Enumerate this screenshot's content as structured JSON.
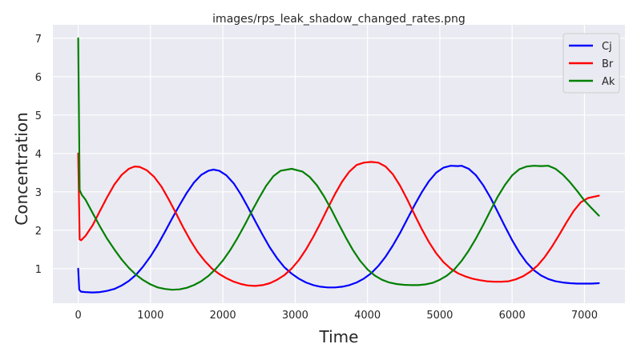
{
  "chart_data": {
    "type": "line",
    "title": "images/rps_leak_shadow_changed_rates.png",
    "xlabel": "Time",
    "ylabel": "Concentration",
    "xlim": [
      -350,
      7560
    ],
    "ylim": [
      0.1,
      7.35
    ],
    "xticks": [
      0,
      1000,
      2000,
      3000,
      4000,
      5000,
      6000,
      7000
    ],
    "yticks": [
      1,
      2,
      3,
      4,
      5,
      6,
      7
    ],
    "grid": true,
    "legend_position": "top-right",
    "background": "#eaeaf2",
    "series": [
      {
        "name": "Cj",
        "color": "#0000ff",
        "points": [
          [
            0,
            1.0
          ],
          [
            15,
            0.45
          ],
          [
            40,
            0.4
          ],
          [
            100,
            0.39
          ],
          [
            200,
            0.38
          ],
          [
            300,
            0.39
          ],
          [
            400,
            0.42
          ],
          [
            500,
            0.47
          ],
          [
            600,
            0.56
          ],
          [
            700,
            0.68
          ],
          [
            800,
            0.84
          ],
          [
            900,
            1.06
          ],
          [
            1000,
            1.32
          ],
          [
            1100,
            1.62
          ],
          [
            1200,
            1.96
          ],
          [
            1300,
            2.31
          ],
          [
            1400,
            2.65
          ],
          [
            1500,
            2.97
          ],
          [
            1600,
            3.24
          ],
          [
            1700,
            3.44
          ],
          [
            1800,
            3.55
          ],
          [
            1870,
            3.58
          ],
          [
            1950,
            3.55
          ],
          [
            2050,
            3.43
          ],
          [
            2150,
            3.22
          ],
          [
            2250,
            2.93
          ],
          [
            2350,
            2.59
          ],
          [
            2450,
            2.23
          ],
          [
            2550,
            1.88
          ],
          [
            2650,
            1.55
          ],
          [
            2750,
            1.27
          ],
          [
            2850,
            1.04
          ],
          [
            2950,
            0.87
          ],
          [
            3050,
            0.74
          ],
          [
            3150,
            0.64
          ],
          [
            3250,
            0.57
          ],
          [
            3350,
            0.53
          ],
          [
            3450,
            0.51
          ],
          [
            3550,
            0.51
          ],
          [
            3650,
            0.53
          ],
          [
            3750,
            0.57
          ],
          [
            3850,
            0.64
          ],
          [
            3950,
            0.74
          ],
          [
            4050,
            0.88
          ],
          [
            4150,
            1.07
          ],
          [
            4250,
            1.31
          ],
          [
            4350,
            1.6
          ],
          [
            4450,
            1.93
          ],
          [
            4550,
            2.29
          ],
          [
            4650,
            2.65
          ],
          [
            4750,
            2.99
          ],
          [
            4850,
            3.28
          ],
          [
            4950,
            3.5
          ],
          [
            5050,
            3.63
          ],
          [
            5150,
            3.68
          ],
          [
            5250,
            3.67
          ],
          [
            5300,
            3.68
          ],
          [
            5400,
            3.6
          ],
          [
            5500,
            3.43
          ],
          [
            5600,
            3.17
          ],
          [
            5700,
            2.85
          ],
          [
            5800,
            2.48
          ],
          [
            5900,
            2.1
          ],
          [
            6000,
            1.74
          ],
          [
            6100,
            1.42
          ],
          [
            6200,
            1.16
          ],
          [
            6300,
            0.96
          ],
          [
            6400,
            0.82
          ],
          [
            6500,
            0.73
          ],
          [
            6600,
            0.67
          ],
          [
            6700,
            0.64
          ],
          [
            6800,
            0.62
          ],
          [
            6900,
            0.61
          ],
          [
            7000,
            0.61
          ],
          [
            7100,
            0.61
          ],
          [
            7200,
            0.62
          ]
        ]
      },
      {
        "name": "Br",
        "color": "#ff0000",
        "points": [
          [
            0,
            4.0
          ],
          [
            20,
            1.76
          ],
          [
            40,
            1.74
          ],
          [
            100,
            1.85
          ],
          [
            200,
            2.13
          ],
          [
            300,
            2.5
          ],
          [
            400,
            2.86
          ],
          [
            500,
            3.19
          ],
          [
            600,
            3.44
          ],
          [
            700,
            3.6
          ],
          [
            780,
            3.66
          ],
          [
            850,
            3.65
          ],
          [
            950,
            3.56
          ],
          [
            1050,
            3.39
          ],
          [
            1150,
            3.14
          ],
          [
            1250,
            2.81
          ],
          [
            1350,
            2.45
          ],
          [
            1450,
            2.08
          ],
          [
            1550,
            1.74
          ],
          [
            1650,
            1.44
          ],
          [
            1750,
            1.2
          ],
          [
            1850,
            1.0
          ],
          [
            1950,
            0.86
          ],
          [
            2050,
            0.75
          ],
          [
            2150,
            0.66
          ],
          [
            2250,
            0.6
          ],
          [
            2350,
            0.56
          ],
          [
            2450,
            0.55
          ],
          [
            2550,
            0.57
          ],
          [
            2650,
            0.62
          ],
          [
            2750,
            0.71
          ],
          [
            2850,
            0.83
          ],
          [
            2950,
            1.0
          ],
          [
            3050,
            1.22
          ],
          [
            3150,
            1.5
          ],
          [
            3250,
            1.83
          ],
          [
            3350,
            2.19
          ],
          [
            3450,
            2.57
          ],
          [
            3550,
            2.94
          ],
          [
            3650,
            3.27
          ],
          [
            3750,
            3.53
          ],
          [
            3850,
            3.7
          ],
          [
            3950,
            3.76
          ],
          [
            4050,
            3.78
          ],
          [
            4150,
            3.76
          ],
          [
            4250,
            3.66
          ],
          [
            4350,
            3.46
          ],
          [
            4450,
            3.16
          ],
          [
            4550,
            2.8
          ],
          [
            4650,
            2.41
          ],
          [
            4750,
            2.03
          ],
          [
            4850,
            1.69
          ],
          [
            4950,
            1.4
          ],
          [
            5050,
            1.17
          ],
          [
            5150,
            1.0
          ],
          [
            5250,
            0.88
          ],
          [
            5350,
            0.8
          ],
          [
            5450,
            0.74
          ],
          [
            5550,
            0.7
          ],
          [
            5650,
            0.67
          ],
          [
            5750,
            0.66
          ],
          [
            5850,
            0.66
          ],
          [
            5950,
            0.67
          ],
          [
            6050,
            0.72
          ],
          [
            6150,
            0.8
          ],
          [
            6250,
            0.92
          ],
          [
            6350,
            1.08
          ],
          [
            6450,
            1.3
          ],
          [
            6550,
            1.57
          ],
          [
            6650,
            1.88
          ],
          [
            6750,
            2.2
          ],
          [
            6850,
            2.5
          ],
          [
            6950,
            2.73
          ],
          [
            7050,
            2.84
          ],
          [
            7200,
            2.9
          ]
        ]
      },
      {
        "name": "Ak",
        "color": "#008000",
        "points": [
          [
            0,
            7.0
          ],
          [
            20,
            3.05
          ],
          [
            50,
            2.92
          ],
          [
            100,
            2.8
          ],
          [
            200,
            2.45
          ],
          [
            300,
            2.1
          ],
          [
            400,
            1.78
          ],
          [
            500,
            1.5
          ],
          [
            600,
            1.24
          ],
          [
            700,
            1.02
          ],
          [
            800,
            0.84
          ],
          [
            900,
            0.7
          ],
          [
            1000,
            0.59
          ],
          [
            1100,
            0.51
          ],
          [
            1200,
            0.47
          ],
          [
            1300,
            0.45
          ],
          [
            1400,
            0.46
          ],
          [
            1500,
            0.5
          ],
          [
            1600,
            0.57
          ],
          [
            1700,
            0.67
          ],
          [
            1800,
            0.81
          ],
          [
            1900,
            0.99
          ],
          [
            2000,
            1.21
          ],
          [
            2100,
            1.48
          ],
          [
            2200,
            1.79
          ],
          [
            2300,
            2.13
          ],
          [
            2400,
            2.49
          ],
          [
            2500,
            2.84
          ],
          [
            2600,
            3.16
          ],
          [
            2700,
            3.41
          ],
          [
            2800,
            3.55
          ],
          [
            2950,
            3.6
          ],
          [
            3100,
            3.53
          ],
          [
            3200,
            3.39
          ],
          [
            3300,
            3.17
          ],
          [
            3400,
            2.88
          ],
          [
            3500,
            2.54
          ],
          [
            3600,
            2.17
          ],
          [
            3700,
            1.81
          ],
          [
            3800,
            1.48
          ],
          [
            3900,
            1.2
          ],
          [
            4000,
            0.98
          ],
          [
            4100,
            0.82
          ],
          [
            4200,
            0.71
          ],
          [
            4300,
            0.64
          ],
          [
            4400,
            0.6
          ],
          [
            4500,
            0.58
          ],
          [
            4600,
            0.57
          ],
          [
            4700,
            0.57
          ],
          [
            4800,
            0.59
          ],
          [
            4900,
            0.63
          ],
          [
            5000,
            0.71
          ],
          [
            5100,
            0.82
          ],
          [
            5200,
            0.98
          ],
          [
            5300,
            1.2
          ],
          [
            5400,
            1.47
          ],
          [
            5500,
            1.79
          ],
          [
            5600,
            2.14
          ],
          [
            5700,
            2.51
          ],
          [
            5800,
            2.87
          ],
          [
            5900,
            3.18
          ],
          [
            6000,
            3.43
          ],
          [
            6100,
            3.59
          ],
          [
            6200,
            3.66
          ],
          [
            6300,
            3.68
          ],
          [
            6400,
            3.67
          ],
          [
            6500,
            3.68
          ],
          [
            6600,
            3.6
          ],
          [
            6700,
            3.45
          ],
          [
            6800,
            3.25
          ],
          [
            6900,
            3.02
          ],
          [
            7000,
            2.77
          ],
          [
            7100,
            2.57
          ],
          [
            7200,
            2.38
          ]
        ]
      }
    ]
  }
}
